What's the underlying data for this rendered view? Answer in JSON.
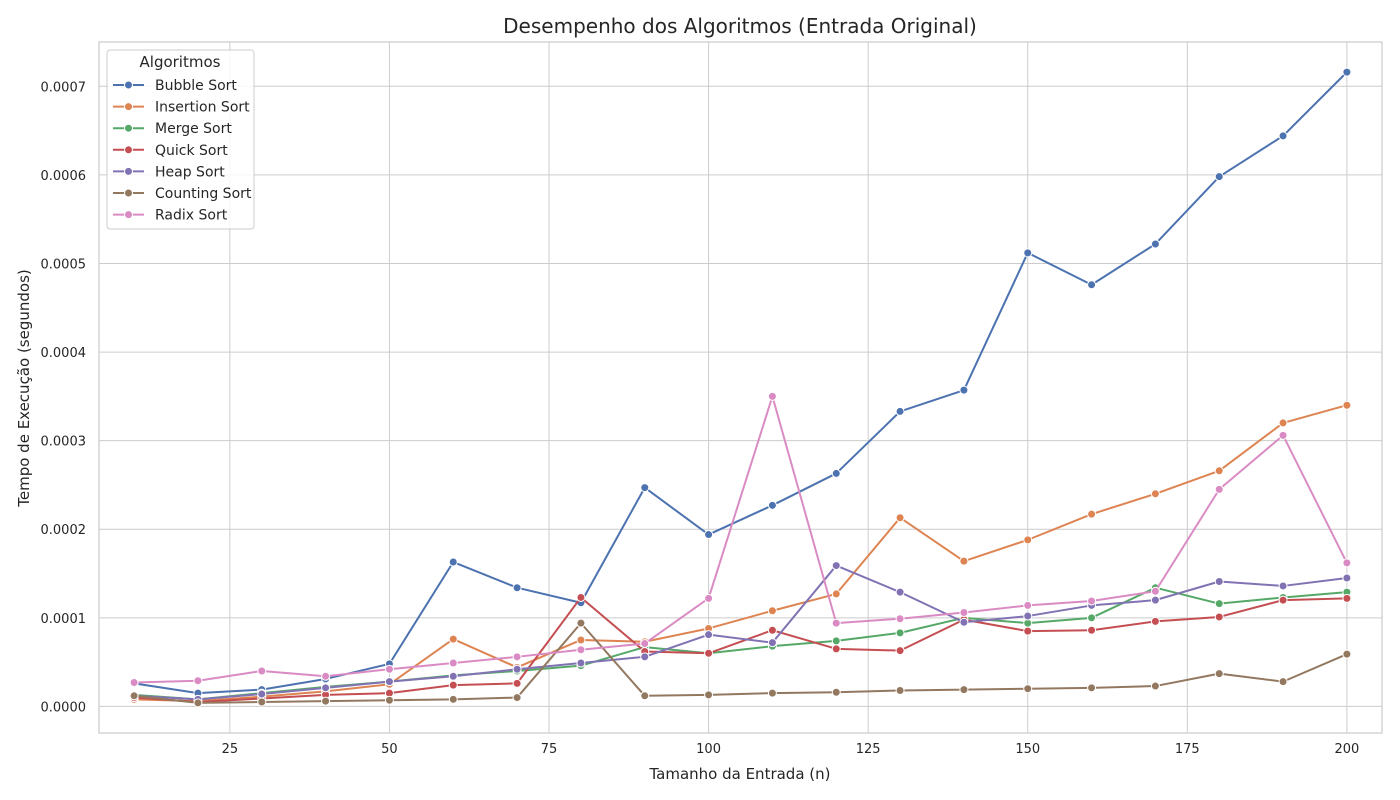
{
  "chart_data": {
    "type": "line",
    "title": "Desempenho dos Algoritmos (Entrada Original)",
    "xlabel": "Tamanho da Entrada (n)",
    "ylabel": "Tempo de Execução (segundos)",
    "xlim": [
      4.5,
      205.5
    ],
    "ylim": [
      -3e-05,
      0.00075
    ],
    "xticks": [
      25,
      50,
      75,
      100,
      125,
      150,
      175,
      200
    ],
    "xtick_labels": [
      "25",
      "50",
      "75",
      "100",
      "125",
      "150",
      "175",
      "200"
    ],
    "yticks": [
      0,
      0.0001,
      0.0002,
      0.0003,
      0.0004,
      0.0005,
      0.0006,
      0.0007
    ],
    "ytick_labels": [
      "0.0000",
      "0.0001",
      "0.0002",
      "0.0003",
      "0.0004",
      "0.0005",
      "0.0006",
      "0.0007"
    ],
    "grid": true,
    "legend_title": "Algoritmos",
    "legend_position": "top-left",
    "x": [
      10,
      20,
      30,
      40,
      50,
      60,
      70,
      80,
      90,
      100,
      110,
      120,
      130,
      140,
      150,
      160,
      170,
      180,
      190,
      200
    ],
    "series": [
      {
        "name": "Bubble Sort",
        "color": "#4c72b0",
        "values": [
          2.6e-05,
          1.5e-05,
          1.9e-05,
          3.1e-05,
          4.8e-05,
          0.000163,
          0.000134,
          0.000117,
          0.000247,
          0.000194,
          0.000227,
          0.000263,
          0.000333,
          0.000357,
          0.000512,
          0.000476,
          0.000522,
          0.000598,
          0.000644,
          0.000716
        ]
      },
      {
        "name": "Insertion Sort",
        "color": "#dd8452",
        "values": [
          8e-06,
          6e-06,
          1.1e-05,
          1.7e-05,
          2.5e-05,
          7.6e-05,
          4.4e-05,
          7.5e-05,
          7.3e-05,
          8.8e-05,
          0.000108,
          0.000127,
          0.000213,
          0.000164,
          0.000188,
          0.000217,
          0.00024,
          0.000266,
          0.00032,
          0.00034
        ]
      },
      {
        "name": "Merge Sort",
        "color": "#55a868",
        "values": [
          1.3e-05,
          8e-06,
          1.5e-05,
          2.2e-05,
          2.8e-05,
          3.5e-05,
          4e-05,
          4.6e-05,
          6.7e-05,
          6e-05,
          6.8e-05,
          7.4e-05,
          8.3e-05,
          0.0001,
          9.4e-05,
          0.0001,
          0.000134,
          0.000116,
          0.000123,
          0.000129
        ]
      },
      {
        "name": "Quick Sort",
        "color": "#c44e52",
        "values": [
          1e-05,
          5e-06,
          9e-06,
          1.3e-05,
          1.5e-05,
          2.4e-05,
          2.6e-05,
          0.000123,
          6.2e-05,
          6e-05,
          8.6e-05,
          6.5e-05,
          6.3e-05,
          9.8e-05,
          8.5e-05,
          8.6e-05,
          9.6e-05,
          0.000101,
          0.00012,
          0.000122
        ]
      },
      {
        "name": "Heap Sort",
        "color": "#8172b3",
        "values": [
          1.2e-05,
          8e-06,
          1.4e-05,
          2.1e-05,
          2.8e-05,
          3.4e-05,
          4.2e-05,
          4.9e-05,
          5.6e-05,
          8.1e-05,
          7.2e-05,
          0.000159,
          0.000129,
          9.5e-05,
          0.000102,
          0.000114,
          0.00012,
          0.000141,
          0.000136,
          0.000145
        ]
      },
      {
        "name": "Counting Sort",
        "color": "#937860",
        "values": [
          1.2e-05,
          4e-06,
          5e-06,
          6e-06,
          7e-06,
          8e-06,
          1e-05,
          9.4e-05,
          1.2e-05,
          1.3e-05,
          1.5e-05,
          1.6e-05,
          1.8e-05,
          1.9e-05,
          2e-05,
          2.1e-05,
          2.3e-05,
          3.7e-05,
          2.8e-05,
          5.9e-05
        ]
      },
      {
        "name": "Radix Sort",
        "color": "#da8bc3",
        "values": [
          2.7e-05,
          2.9e-05,
          4e-05,
          3.4e-05,
          4.2e-05,
          4.9e-05,
          5.6e-05,
          6.4e-05,
          7.1e-05,
          0.000122,
          0.00035,
          9.4e-05,
          9.9e-05,
          0.000106,
          0.000114,
          0.000119,
          0.00013,
          0.000245,
          0.000306,
          0.000162
        ]
      }
    ]
  }
}
